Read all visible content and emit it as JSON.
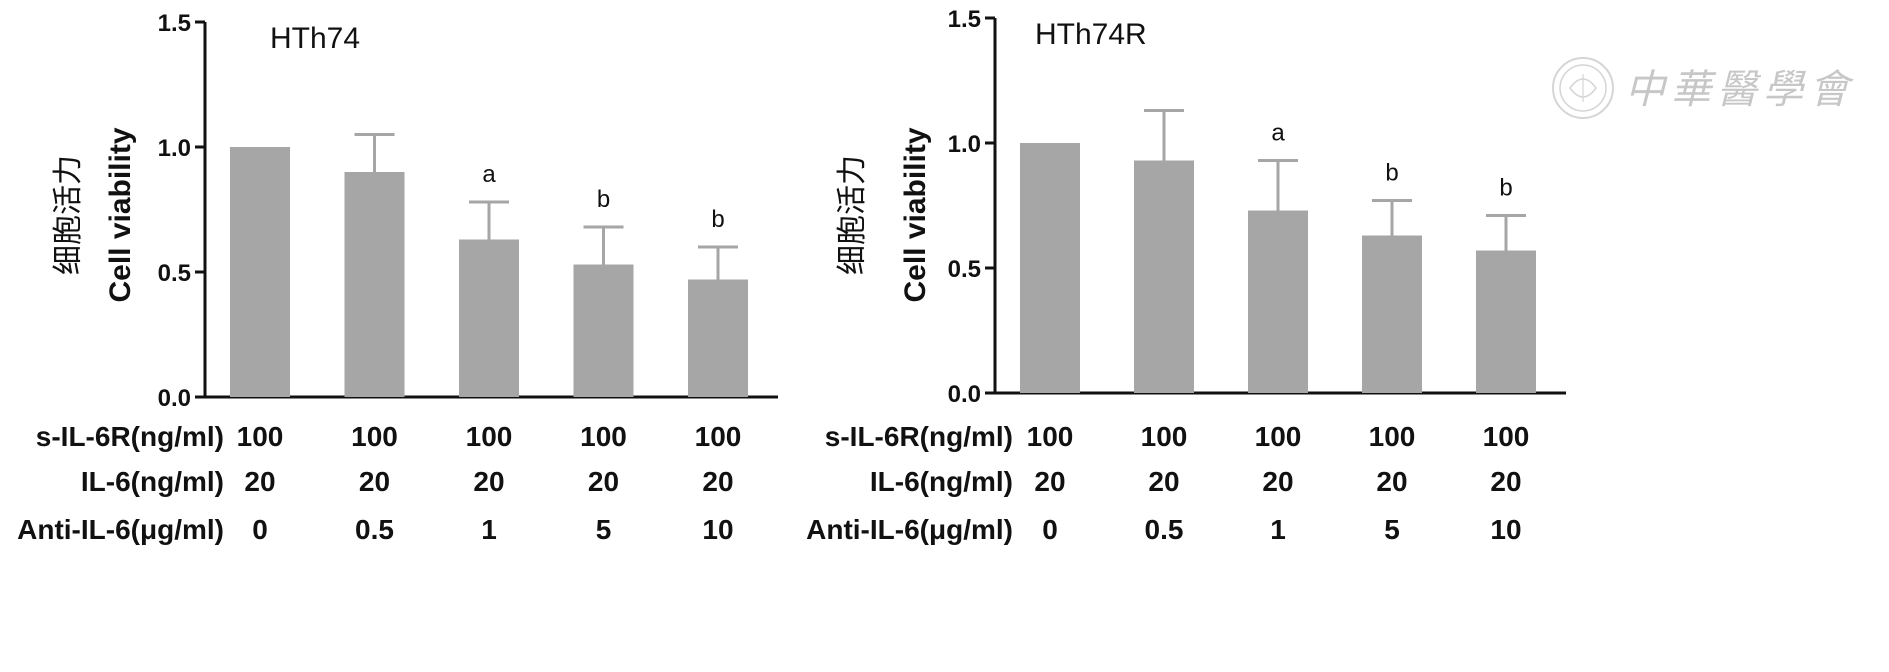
{
  "watermark": {
    "text": "中華醫學會"
  },
  "chart_data": [
    {
      "type": "bar",
      "title": "HTh74",
      "ylabel_cn": "细胞活力",
      "ylabel": "Cell viability",
      "ylim": [
        0,
        1.5
      ],
      "yticks": [
        0.0,
        0.5,
        1.0,
        1.5
      ],
      "ytick_labels": [
        "0.0",
        "0.5",
        "1.0",
        "1.5"
      ],
      "values": [
        1.0,
        0.9,
        0.63,
        0.53,
        0.47
      ],
      "errors": [
        0.0,
        0.15,
        0.15,
        0.15,
        0.13
      ],
      "annotations": [
        "",
        "",
        "a",
        "b",
        "b"
      ],
      "bar_color": "#a6a6a7",
      "conditions": [
        {
          "label": "s-IL-6R(ng/ml)",
          "values": [
            "100",
            "100",
            "100",
            "100",
            "100"
          ]
        },
        {
          "label": "IL-6(ng/ml)",
          "values": [
            "20",
            "20",
            "20",
            "20",
            "20"
          ]
        },
        {
          "label": "Anti-IL-6(μg/ml)",
          "values": [
            "0",
            "0.5",
            "1",
            "5",
            "10"
          ]
        }
      ]
    },
    {
      "type": "bar",
      "title": "HTh74R",
      "ylabel_cn": "细胞活力",
      "ylabel": "Cell viability",
      "ylim": [
        0,
        1.5
      ],
      "yticks": [
        0.0,
        0.5,
        1.0,
        1.5
      ],
      "ytick_labels": [
        "0.0",
        "0.5",
        "1.0",
        "1.5"
      ],
      "values": [
        1.0,
        0.93,
        0.73,
        0.63,
        0.57
      ],
      "errors": [
        0.0,
        0.2,
        0.2,
        0.14,
        0.14
      ],
      "annotations": [
        "",
        "",
        "a",
        "b",
        "b"
      ],
      "bar_color": "#a6a6a7",
      "conditions": [
        {
          "label": "s-IL-6R(ng/ml)",
          "values": [
            "100",
            "100",
            "100",
            "100",
            "100"
          ]
        },
        {
          "label": "IL-6(ng/ml)",
          "values": [
            "20",
            "20",
            "20",
            "20",
            "20"
          ]
        },
        {
          "label": "Anti-IL-6(μg/ml)",
          "values": [
            "0",
            "0.5",
            "1",
            "5",
            "10"
          ]
        }
      ]
    }
  ]
}
